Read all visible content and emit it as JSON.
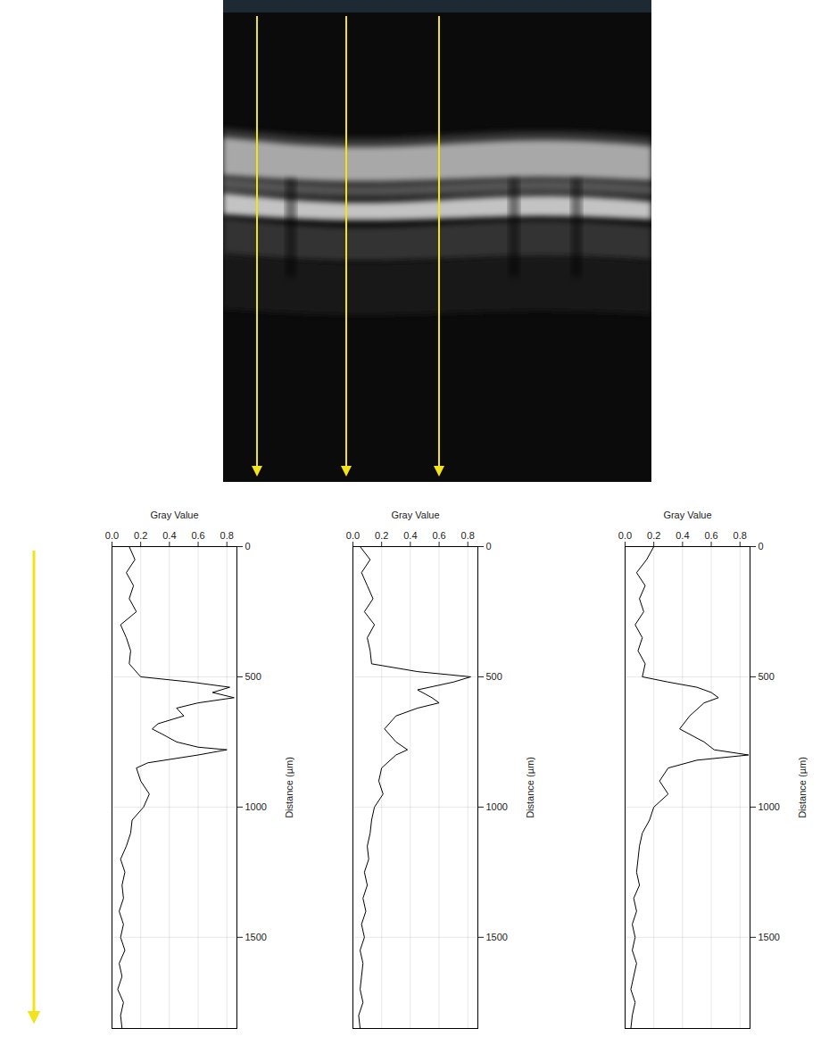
{
  "chart_data": [
    {
      "type": "line",
      "xlabel": "Distance (µm)",
      "ylabel": "Gray Value",
      "color": "#000000",
      "grid": true,
      "xlim": [
        0,
        1850
      ],
      "xticks": [
        0,
        500,
        1000,
        1500
      ],
      "ylim": [
        0,
        0.87
      ],
      "yticks": [
        {
          "value": 0,
          "label": "0.0"
        },
        0.2,
        0.4,
        0.6,
        0.8
      ],
      "x": [
        0,
        50,
        100,
        150,
        200,
        250,
        300,
        350,
        400,
        450,
        500,
        520,
        540,
        560,
        580,
        600,
        620,
        650,
        680,
        700,
        720,
        750,
        770,
        780,
        790,
        800,
        830,
        850,
        900,
        950,
        1000,
        1050,
        1100,
        1150,
        1200,
        1250,
        1300,
        1350,
        1400,
        1450,
        1500,
        1550,
        1600,
        1650,
        1700,
        1750,
        1800,
        1850
      ],
      "values": [
        0.12,
        0.16,
        0.1,
        0.15,
        0.12,
        0.17,
        0.06,
        0.1,
        0.13,
        0.12,
        0.2,
        0.55,
        0.82,
        0.7,
        0.85,
        0.6,
        0.45,
        0.5,
        0.32,
        0.28,
        0.35,
        0.45,
        0.6,
        0.8,
        0.7,
        0.6,
        0.25,
        0.17,
        0.2,
        0.26,
        0.22,
        0.14,
        0.13,
        0.1,
        0.06,
        0.09,
        0.07,
        0.08,
        0.05,
        0.08,
        0.06,
        0.09,
        0.05,
        0.07,
        0.04,
        0.08,
        0.06,
        0.07
      ]
    },
    {
      "type": "line",
      "xlabel": "Distance (µm)",
      "ylabel": "Gray Value",
      "color": "#000000",
      "grid": true,
      "xlim": [
        0,
        1850
      ],
      "xticks": [
        0,
        500,
        1000,
        1500
      ],
      "ylim": [
        0,
        0.87
      ],
      "yticks": [
        {
          "value": 0,
          "label": "0.0"
        },
        0.2,
        0.4,
        0.6,
        0.8
      ],
      "x": [
        0,
        50,
        100,
        150,
        200,
        250,
        300,
        350,
        400,
        450,
        480,
        500,
        520,
        550,
        580,
        600,
        620,
        650,
        700,
        750,
        780,
        800,
        850,
        900,
        950,
        1000,
        1050,
        1100,
        1150,
        1200,
        1250,
        1300,
        1350,
        1400,
        1450,
        1500,
        1550,
        1600,
        1650,
        1700,
        1750,
        1800,
        1850
      ],
      "values": [
        0.05,
        0.12,
        0.06,
        0.1,
        0.14,
        0.08,
        0.15,
        0.1,
        0.12,
        0.13,
        0.45,
        0.82,
        0.7,
        0.45,
        0.55,
        0.6,
        0.45,
        0.3,
        0.22,
        0.3,
        0.38,
        0.3,
        0.2,
        0.18,
        0.21,
        0.15,
        0.13,
        0.12,
        0.1,
        0.11,
        0.08,
        0.1,
        0.07,
        0.09,
        0.06,
        0.08,
        0.05,
        0.07,
        0.06,
        0.05,
        0.07,
        0.04,
        0.05
      ]
    },
    {
      "type": "line",
      "xlabel": "Distance (µm)",
      "ylabel": "Gray Value",
      "color": "#000000",
      "grid": true,
      "xlim": [
        0,
        1850
      ],
      "xticks": [
        0,
        500,
        1000,
        1500
      ],
      "ylim": [
        0,
        0.87
      ],
      "yticks": [
        {
          "value": 0,
          "label": "0.0"
        },
        0.2,
        0.4,
        0.6,
        0.8
      ],
      "x": [
        0,
        50,
        100,
        150,
        200,
        250,
        300,
        350,
        400,
        450,
        500,
        520,
        540,
        560,
        580,
        600,
        650,
        700,
        750,
        780,
        800,
        820,
        850,
        900,
        950,
        1000,
        1050,
        1100,
        1150,
        1200,
        1250,
        1300,
        1350,
        1400,
        1450,
        1500,
        1550,
        1600,
        1650,
        1700,
        1750,
        1800,
        1850
      ],
      "values": [
        0.2,
        0.15,
        0.08,
        0.14,
        0.1,
        0.13,
        0.07,
        0.12,
        0.09,
        0.14,
        0.12,
        0.3,
        0.5,
        0.6,
        0.65,
        0.55,
        0.45,
        0.38,
        0.55,
        0.62,
        0.86,
        0.5,
        0.3,
        0.24,
        0.3,
        0.2,
        0.17,
        0.12,
        0.1,
        0.09,
        0.08,
        0.1,
        0.06,
        0.08,
        0.05,
        0.07,
        0.05,
        0.08,
        0.06,
        0.04,
        0.07,
        0.05,
        0.04
      ]
    }
  ]
}
